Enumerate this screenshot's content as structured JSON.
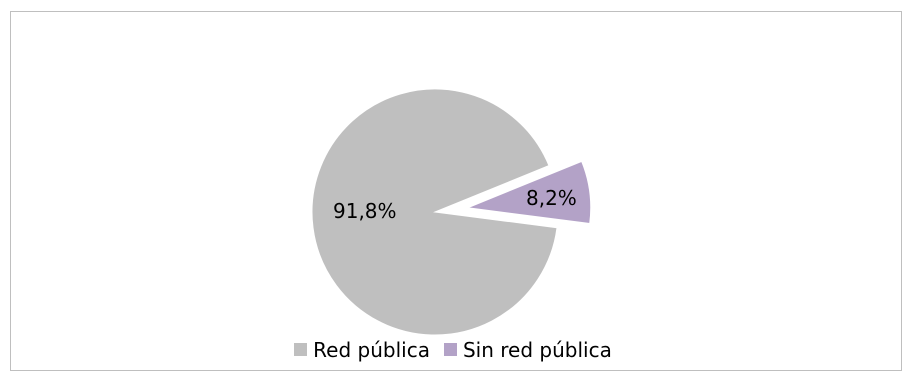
{
  "chart_data": {
    "type": "pie",
    "slices": [
      {
        "label": "Red pública",
        "value": 91.8,
        "value_label": "91,8%",
        "color": "#bfbfbf"
      },
      {
        "label": "Sin red pública",
        "value": 8.2,
        "value_label": "8,2%",
        "color": "#b3a2c7",
        "exploded": true
      }
    ],
    "legend_position": "bottom"
  }
}
